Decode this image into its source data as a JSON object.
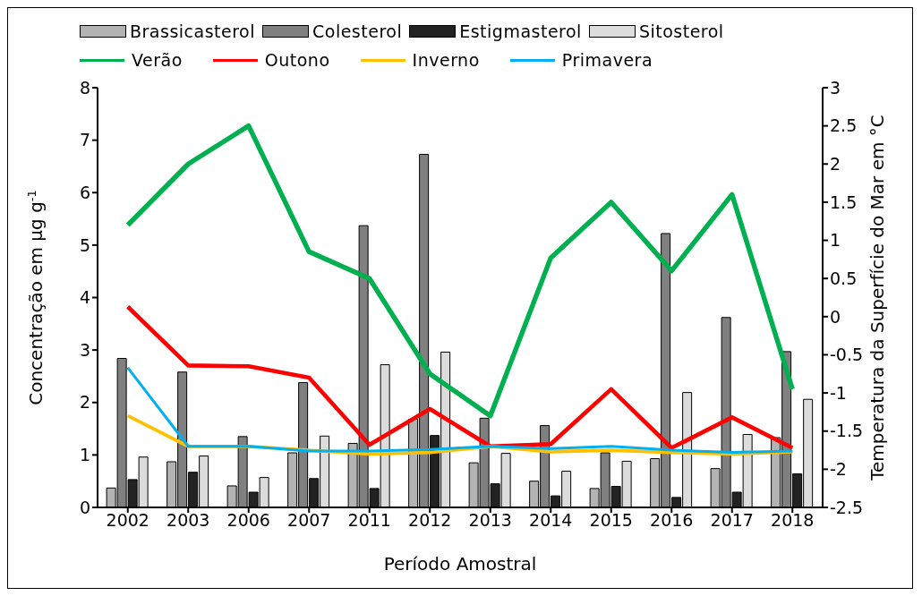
{
  "chart_data": {
    "type": "bar",
    "xlabel": "Período Amostral",
    "ylabel": "Concentração em µg g$^{-1}$",
    "y2label": "Temperatura da Superfície do Mar em °C",
    "categories": [
      "2002",
      "2003",
      "2006",
      "2007",
      "2011",
      "2012",
      "2013",
      "2014",
      "2015",
      "2016",
      "2017",
      "2018"
    ],
    "series": [
      {
        "name": "Brassicasterol",
        "color": "#b3b3b3",
        "values": [
          0.37,
          0.87,
          0.41,
          1.04,
          1.22,
          1.68,
          0.85,
          0.5,
          0.36,
          0.93,
          0.74,
          1.33
        ]
      },
      {
        "name": "Colesterol",
        "color": "#808080",
        "values": [
          2.84,
          2.58,
          1.35,
          2.38,
          5.37,
          6.73,
          1.7,
          1.56,
          1.04,
          5.22,
          3.62,
          2.97
        ]
      },
      {
        "name": "Estigmasterol",
        "color": "#222222",
        "values": [
          0.53,
          0.67,
          0.29,
          0.55,
          0.36,
          1.37,
          0.45,
          0.22,
          0.4,
          0.19,
          0.29,
          0.64
        ]
      },
      {
        "name": "Sitosterol",
        "color": "#dcdcdc",
        "values": [
          0.96,
          0.98,
          0.57,
          1.36,
          2.72,
          2.96,
          1.03,
          0.69,
          0.88,
          2.19,
          1.39,
          2.06
        ]
      },
      {
        "name": "Verão",
        "type": "line",
        "axis": "y2",
        "color": "#00b050",
        "values": [
          1.2,
          2.0,
          2.5,
          0.85,
          0.5,
          -0.75,
          -1.3,
          0.77,
          1.5,
          0.6,
          1.6,
          -0.95
        ]
      },
      {
        "name": "Outono",
        "type": "line",
        "axis": "y2",
        "color": "#ff0000",
        "values": [
          0.13,
          -0.64,
          -0.65,
          -0.8,
          -1.68,
          -1.21,
          -1.7,
          -1.67,
          -0.95,
          -1.72,
          -1.32,
          -1.72
        ]
      },
      {
        "name": "Inverno",
        "type": "line",
        "axis": "y2",
        "color": "#ffc000",
        "values": [
          -1.3,
          -1.7,
          -1.7,
          -1.75,
          -1.8,
          -1.78,
          -1.7,
          -1.77,
          -1.75,
          -1.78,
          -1.8,
          -1.77
        ]
      },
      {
        "name": "Primavera",
        "type": "line",
        "axis": "y2",
        "color": "#00b0f0",
        "values": [
          -0.67,
          -1.7,
          -1.7,
          -1.76,
          -1.76,
          -1.74,
          -1.7,
          -1.73,
          -1.7,
          -1.75,
          -1.78,
          -1.76
        ]
      }
    ],
    "ylim": [
      0,
      8
    ],
    "yticks": [
      0,
      1,
      2,
      3,
      4,
      5,
      6,
      7,
      8
    ],
    "y2lim": [
      -2.5,
      3
    ],
    "y2ticks": [
      -2.5,
      -2,
      -1.5,
      -1,
      -0.5,
      0,
      0.5,
      1,
      1.5,
      2,
      2.5,
      3
    ],
    "grid": false,
    "legend": "top",
    "marker": "none",
    "line_style": "solid"
  }
}
